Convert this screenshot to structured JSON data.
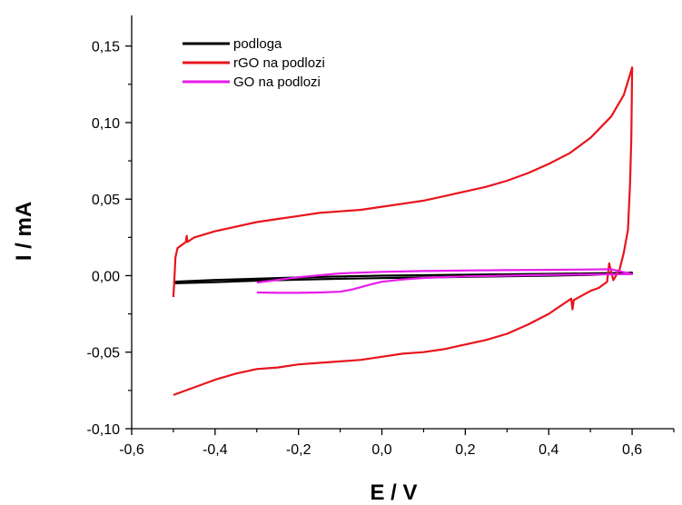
{
  "chart_data": {
    "type": "line",
    "title": "",
    "xlabel": "E / V",
    "ylabel": "I / mA",
    "xlim": [
      -0.6,
      0.7
    ],
    "ylim": [
      -0.1,
      0.17
    ],
    "xticks": [
      -0.6,
      -0.4,
      -0.2,
      0.0,
      0.2,
      0.4,
      0.6
    ],
    "xtick_labels": [
      "-0,6",
      "-0,4",
      "-0,2",
      "0,0",
      "0,2",
      "0,4",
      "0,6"
    ],
    "yticks": [
      -0.1,
      -0.05,
      0.0,
      0.05,
      0.1,
      0.15
    ],
    "ytick_labels": [
      "-0,10",
      "-0,05",
      "0,00",
      "0,05",
      "0,10",
      "0,15"
    ],
    "grid": false,
    "legend_position": "top-left",
    "series": [
      {
        "name": "podloga",
        "color": "#000000",
        "points": [
          [
            -0.5,
            -0.004
          ],
          [
            -0.4,
            -0.0028
          ],
          [
            -0.3,
            -0.002
          ],
          [
            -0.2,
            -0.0012
          ],
          [
            -0.1,
            -0.0005
          ],
          [
            0.0,
            0.0
          ],
          [
            0.1,
            0.0003
          ],
          [
            0.2,
            0.0006
          ],
          [
            0.3,
            0.0009
          ],
          [
            0.4,
            0.0012
          ],
          [
            0.5,
            0.0015
          ],
          [
            0.6,
            0.0018
          ],
          [
            0.5,
            0.0005
          ],
          [
            0.4,
            0.0
          ],
          [
            0.3,
            -0.0004
          ],
          [
            0.2,
            -0.0008
          ],
          [
            0.1,
            -0.0012
          ],
          [
            0.0,
            -0.0016
          ],
          [
            -0.1,
            -0.002
          ],
          [
            -0.2,
            -0.0026
          ],
          [
            -0.3,
            -0.0033
          ],
          [
            -0.4,
            -0.0042
          ],
          [
            -0.5,
            -0.005
          ]
        ]
      },
      {
        "name": "rGO  na podlozi",
        "color": "#e8141c",
        "points": [
          [
            -0.5,
            -0.014
          ],
          [
            -0.498,
            -0.005
          ],
          [
            -0.495,
            0.012
          ],
          [
            -0.49,
            0.018
          ],
          [
            -0.48,
            0.02
          ],
          [
            -0.47,
            0.022
          ],
          [
            -0.468,
            0.026
          ],
          [
            -0.466,
            0.022
          ],
          [
            -0.45,
            0.025
          ],
          [
            -0.4,
            0.029
          ],
          [
            -0.35,
            0.032
          ],
          [
            -0.3,
            0.035
          ],
          [
            -0.25,
            0.037
          ],
          [
            -0.2,
            0.039
          ],
          [
            -0.15,
            0.041
          ],
          [
            -0.1,
            0.042
          ],
          [
            -0.05,
            0.043
          ],
          [
            0.0,
            0.045
          ],
          [
            0.05,
            0.047
          ],
          [
            0.1,
            0.049
          ],
          [
            0.15,
            0.052
          ],
          [
            0.2,
            0.055
          ],
          [
            0.25,
            0.058
          ],
          [
            0.3,
            0.062
          ],
          [
            0.35,
            0.067
          ],
          [
            0.4,
            0.073
          ],
          [
            0.45,
            0.08
          ],
          [
            0.5,
            0.09
          ],
          [
            0.55,
            0.104
          ],
          [
            0.58,
            0.118
          ],
          [
            0.6,
            0.136
          ],
          [
            0.598,
            0.09
          ],
          [
            0.595,
            0.06
          ],
          [
            0.59,
            0.03
          ],
          [
            0.58,
            0.015
          ],
          [
            0.57,
            0.004
          ],
          [
            0.555,
            -0.003
          ],
          [
            0.545,
            0.008
          ],
          [
            0.54,
            -0.004
          ],
          [
            0.52,
            -0.008
          ],
          [
            0.5,
            -0.01
          ],
          [
            0.46,
            -0.016
          ],
          [
            0.457,
            -0.022
          ],
          [
            0.454,
            -0.015
          ],
          [
            0.4,
            -0.025
          ],
          [
            0.35,
            -0.032
          ],
          [
            0.3,
            -0.038
          ],
          [
            0.25,
            -0.042
          ],
          [
            0.2,
            -0.045
          ],
          [
            0.15,
            -0.048
          ],
          [
            0.1,
            -0.05
          ],
          [
            0.05,
            -0.051
          ],
          [
            0.0,
            -0.053
          ],
          [
            -0.05,
            -0.055
          ],
          [
            -0.1,
            -0.056
          ],
          [
            -0.15,
            -0.057
          ],
          [
            -0.2,
            -0.058
          ],
          [
            -0.25,
            -0.06
          ],
          [
            -0.3,
            -0.061
          ],
          [
            -0.35,
            -0.064
          ],
          [
            -0.4,
            -0.068
          ],
          [
            -0.45,
            -0.073
          ],
          [
            -0.5,
            -0.078
          ]
        ]
      },
      {
        "name": "GO na podlozi",
        "color": "#e81ce8",
        "points": [
          [
            -0.3,
            -0.011
          ],
          [
            -0.25,
            -0.0112
          ],
          [
            -0.2,
            -0.0112
          ],
          [
            -0.15,
            -0.011
          ],
          [
            -0.1,
            -0.0105
          ],
          [
            -0.07,
            -0.009
          ],
          [
            -0.03,
            -0.006
          ],
          [
            0.0,
            -0.004
          ],
          [
            0.05,
            -0.0025
          ],
          [
            0.1,
            -0.0015
          ],
          [
            0.2,
            -0.0005
          ],
          [
            0.3,
            0.0
          ],
          [
            0.4,
            0.0005
          ],
          [
            0.5,
            0.0008
          ],
          [
            0.6,
            0.001
          ],
          [
            0.55,
            0.0042
          ],
          [
            0.5,
            0.004
          ],
          [
            0.4,
            0.0038
          ],
          [
            0.3,
            0.0036
          ],
          [
            0.2,
            0.0034
          ],
          [
            0.1,
            0.003
          ],
          [
            0.0,
            0.0025
          ],
          [
            -0.1,
            0.0015
          ],
          [
            -0.2,
            -0.001
          ],
          [
            -0.3,
            -0.0045
          ]
        ]
      }
    ]
  }
}
